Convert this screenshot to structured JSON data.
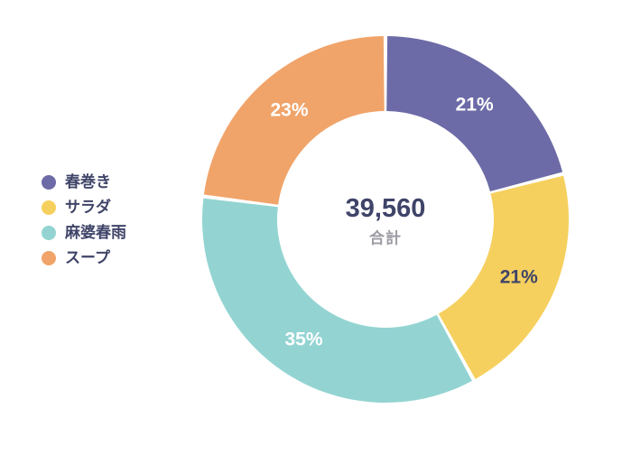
{
  "chart_data": {
    "type": "pie",
    "variant": "donut",
    "title": "",
    "categories": [
      "春巻き",
      "サラダ",
      "麻婆春雨",
      "スープ"
    ],
    "values": [
      21,
      21,
      35,
      23
    ],
    "total_value": "39,560",
    "total_label": "合計",
    "start_angle_deg": -90,
    "direction": "clockwise",
    "legend_position": "left",
    "series": [
      {
        "label": "春巻き",
        "percent": 21,
        "percent_label": "21%",
        "color": "#6C6BA7",
        "label_color": "#FFFFFF"
      },
      {
        "label": "サラダ",
        "percent": 21,
        "percent_label": "21%",
        "color": "#F6D05E",
        "label_color": "#3F4468"
      },
      {
        "label": "麻婆春雨",
        "percent": 35,
        "percent_label": "35%",
        "color": "#93D4D2",
        "label_color": "#FFFFFF"
      },
      {
        "label": "スープ",
        "percent": 23,
        "percent_label": "23%",
        "color": "#F0A46A",
        "label_color": "#FFFFFF"
      }
    ]
  },
  "colors": {
    "background": "#FFFFFF",
    "center_value": "#3F4468",
    "center_sublabel": "#9C9CA4",
    "legend_text": "#3F4468",
    "slice_gap": "#FFFFFF"
  }
}
